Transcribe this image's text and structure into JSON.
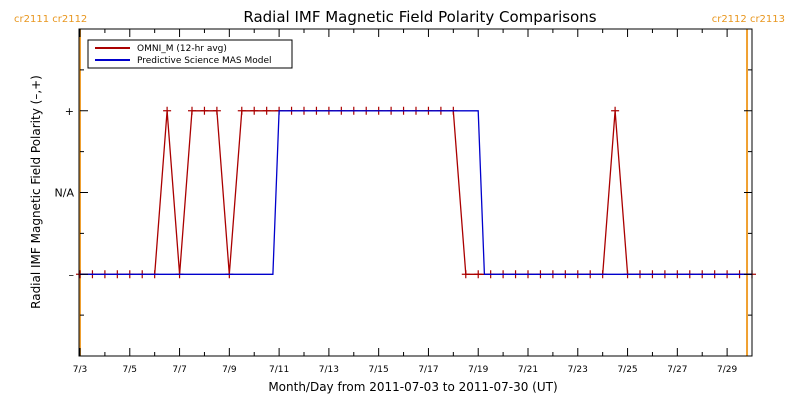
{
  "chart_data": {
    "type": "line",
    "title": "Radial IMF Magnetic Field Polarity Comparisons",
    "xlabel": "Month/Day from 2011-07-03 to 2011-07-30 (UT)",
    "ylabel": "Radial IMF Magnetic Field Polarity (–,+)",
    "x_tick_labels": [
      "7/3",
      "7/5",
      "7/7",
      "7/9",
      "7/11",
      "7/13",
      "7/15",
      "7/17",
      "7/19",
      "7/21",
      "7/23",
      "7/25",
      "7/27",
      "7/29"
    ],
    "x_tick_days": [
      3,
      5,
      7,
      9,
      11,
      13,
      15,
      17,
      19,
      21,
      23,
      25,
      27,
      29
    ],
    "xlim_days": [
      3,
      30
    ],
    "y_tick_labels": [
      "–",
      "N/A",
      "+"
    ],
    "y_tick_values": [
      -1,
      0,
      1
    ],
    "ylim": [
      -2,
      2
    ],
    "grid": false,
    "legend_position": "top-left",
    "carrington_boundaries": [
      {
        "day": 3.0,
        "label": "cr2111 cr2112"
      },
      {
        "day": 29.8,
        "label": "cr2112 cr2113"
      }
    ],
    "series": [
      {
        "name": "OMNI_M (12-hr avg)",
        "color": "#aa0000",
        "markers": true,
        "x": [
          3.0,
          3.5,
          4.0,
          4.5,
          5.0,
          5.5,
          6.0,
          6.5,
          7.0,
          7.5,
          8.0,
          8.5,
          9.0,
          9.5,
          10.0,
          10.5,
          11.0,
          11.5,
          12.0,
          12.5,
          13.0,
          13.5,
          14.0,
          14.5,
          15.0,
          15.5,
          16.0,
          16.5,
          17.0,
          17.5,
          18.0,
          18.5,
          19.0,
          19.5,
          20.0,
          20.5,
          21.0,
          21.5,
          22.0,
          22.5,
          23.0,
          23.5,
          24.0,
          24.5,
          25.0,
          25.5,
          26.0,
          26.5,
          27.0,
          27.5,
          28.0,
          28.5,
          29.0,
          29.5,
          30.0
        ],
        "values": [
          -1,
          -1,
          -1,
          -1,
          -1,
          -1,
          -1,
          1,
          -1,
          1,
          1,
          1,
          -1,
          1,
          1,
          1,
          1,
          1,
          1,
          1,
          1,
          1,
          1,
          1,
          1,
          1,
          1,
          1,
          1,
          1,
          1,
          -1,
          -1,
          -1,
          -1,
          -1,
          -1,
          -1,
          -1,
          -1,
          -1,
          -1,
          -1,
          1,
          -1,
          -1,
          -1,
          -1,
          -1,
          -1,
          -1,
          -1,
          -1,
          -1,
          -1
        ]
      },
      {
        "name": "Predictive Science MAS Model",
        "color": "#0000cc",
        "markers": false,
        "x": [
          3.0,
          10.75,
          11.0,
          19.0,
          19.25,
          30.0
        ],
        "values": [
          -1,
          -1,
          1,
          1,
          -1,
          -1
        ]
      }
    ]
  }
}
